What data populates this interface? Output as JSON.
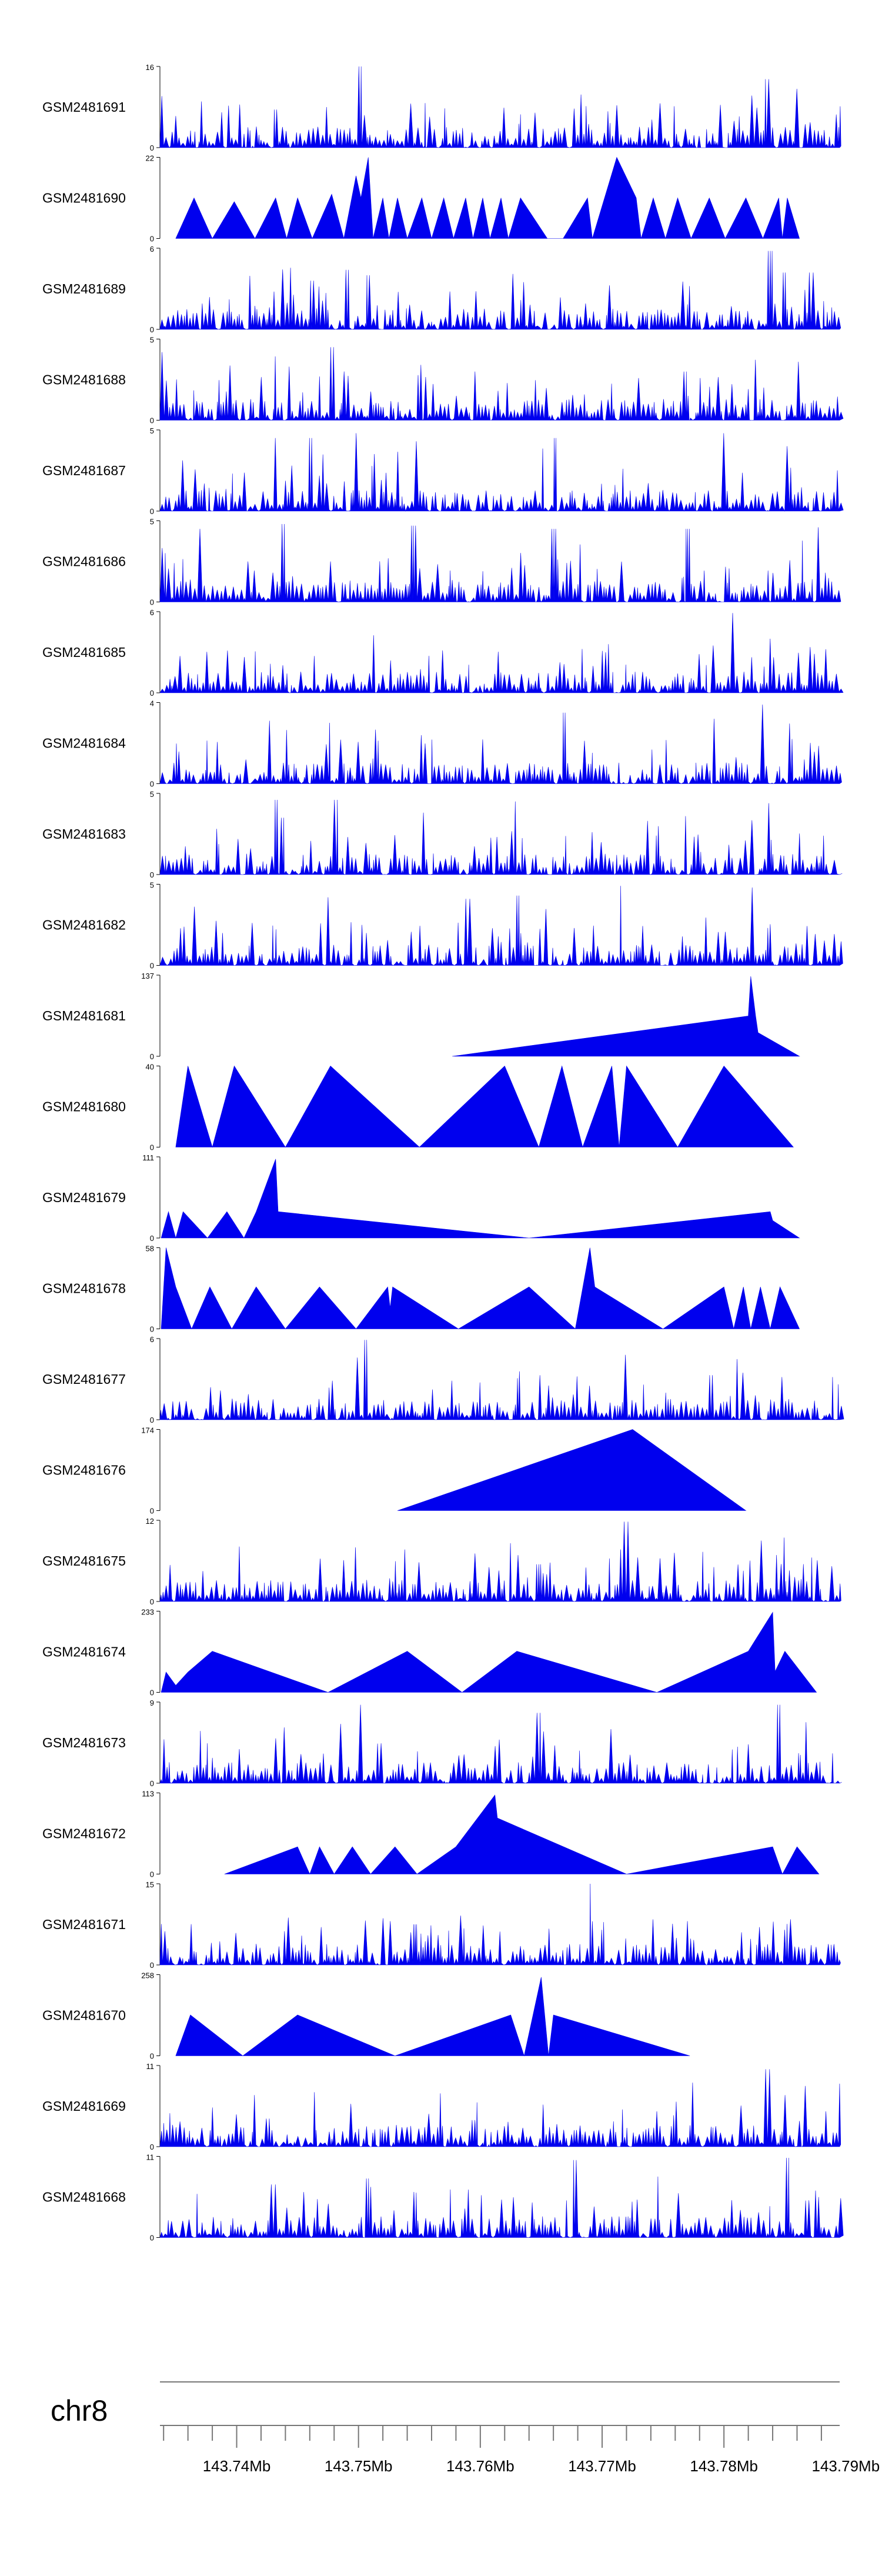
{
  "chart_data": {
    "type": "area",
    "title": "",
    "xlabel": "",
    "ylabel": "",
    "chromosome": "chr8",
    "xlim": [
      143.7337,
      143.7895
    ],
    "xticks": [
      143.74,
      143.75,
      143.76,
      143.77,
      143.78,
      143.79
    ],
    "xtick_labels": [
      "143.74Mb",
      "143.75Mb",
      "143.76Mb",
      "143.77Mb",
      "143.78Mb",
      "143.79Mb"
    ],
    "fill_color": "#0000ee",
    "grid": false,
    "legend": "none",
    "tracks": [
      {
        "name": "GSM2481691",
        "ymax": 16,
        "pattern": "dense",
        "peaks": [
          [
            143.7502,
            16
          ],
          [
            143.7432,
            7.5
          ],
          [
            143.7836,
            13.5
          ],
          [
            143.7871,
            5
          ]
        ]
      },
      {
        "name": "GSM2481690",
        "ymax": 22,
        "pattern": "triangles",
        "starts": 143.735,
        "points": [
          [
            143.735,
            0
          ],
          [
            143.7365,
            11
          ],
          [
            143.738,
            0
          ],
          [
            143.7398,
            10
          ],
          [
            143.7415,
            0
          ],
          [
            143.7432,
            11
          ],
          [
            143.7441,
            0
          ],
          [
            143.745,
            11
          ],
          [
            143.7462,
            0
          ],
          [
            143.7478,
            12
          ],
          [
            143.7488,
            0
          ],
          [
            143.7498,
            17
          ],
          [
            143.7502,
            11
          ],
          [
            143.7508,
            22
          ],
          [
            143.7512,
            0
          ],
          [
            143.752,
            11
          ],
          [
            143.7525,
            0
          ],
          [
            143.7532,
            11
          ],
          [
            143.754,
            0
          ],
          [
            143.7552,
            11
          ],
          [
            143.756,
            0
          ],
          [
            143.757,
            11
          ],
          [
            143.7578,
            0
          ],
          [
            143.7588,
            11
          ],
          [
            143.7594,
            0
          ],
          [
            143.7602,
            11
          ],
          [
            143.7608,
            0
          ],
          [
            143.7617,
            11
          ],
          [
            143.7623,
            0
          ],
          [
            143.7633,
            11
          ],
          [
            143.7655,
            0
          ],
          [
            143.7668,
            0
          ],
          [
            143.7688,
            11
          ],
          [
            143.7692,
            0
          ],
          [
            143.7712,
            22
          ],
          [
            143.7728,
            11
          ],
          [
            143.7732,
            0
          ],
          [
            143.7742,
            11
          ],
          [
            143.7752,
            0
          ],
          [
            143.7762,
            11
          ],
          [
            143.7773,
            0
          ],
          [
            143.7788,
            11
          ],
          [
            143.7801,
            0
          ],
          [
            143.7818,
            11
          ],
          [
            143.7832,
            0
          ],
          [
            143.7845,
            11
          ],
          [
            143.7848,
            0
          ],
          [
            143.7852,
            11
          ],
          [
            143.7862,
            0
          ]
        ]
      },
      {
        "name": "GSM2481689",
        "ymax": 6,
        "pattern": "dense",
        "peaks": [
          [
            143.7462,
            3.6
          ],
          [
            143.749,
            4.4
          ],
          [
            143.7508,
            4.0
          ],
          [
            143.7628,
            4.1
          ],
          [
            143.7838,
            5.8
          ],
          [
            143.785,
            4.2
          ],
          [
            143.7872,
            4.2
          ]
        ]
      },
      {
        "name": "GSM2481688",
        "ymax": 5,
        "pattern": "dense",
        "peaks": [
          [
            143.7338,
            4.2
          ],
          [
            143.7478,
            4.5
          ],
          [
            143.7488,
            3.0
          ],
          [
            143.7596,
            3.0
          ],
          [
            143.7768,
            3.0
          ],
          [
            143.7862,
            3.6
          ]
        ]
      },
      {
        "name": "GSM2481687",
        "ymax": 5,
        "pattern": "dense",
        "peaks": [
          [
            143.7432,
            4.5
          ],
          [
            143.7461,
            4.5
          ],
          [
            143.7498,
            4.8
          ],
          [
            143.7548,
            4.3
          ],
          [
            143.7661,
            4.5
          ],
          [
            143.78,
            4.8
          ],
          [
            143.785,
            4.0
          ]
        ]
      },
      {
        "name": "GSM2481686",
        "ymax": 5,
        "pattern": "dense",
        "peaks": [
          [
            143.7368,
            4.5
          ],
          [
            143.7438,
            4.8
          ],
          [
            143.7545,
            4.7
          ],
          [
            143.766,
            4.5
          ],
          [
            143.777,
            4.5
          ],
          [
            143.7878,
            4.6
          ]
        ]
      },
      {
        "name": "GSM2481685",
        "ymax": 6,
        "pattern": "dense",
        "peaks": [
          [
            143.7808,
            5.9
          ],
          [
            143.7792,
            3.5
          ],
          [
            143.7838,
            4.0
          ],
          [
            143.7702,
            3.0
          ]
        ]
      },
      {
        "name": "GSM2481684",
        "ymax": 4,
        "pattern": "dense",
        "peaks": [
          [
            143.7428,
            3.1
          ],
          [
            143.7476,
            3.0
          ],
          [
            143.7668,
            3.5
          ],
          [
            143.7792,
            3.2
          ],
          [
            143.7832,
            3.9
          ]
        ]
      },
      {
        "name": "GSM2481683",
        "ymax": 5,
        "pattern": "dense",
        "peaks": [
          [
            143.7432,
            4.6
          ],
          [
            143.7438,
            3.5
          ],
          [
            143.7481,
            4.6
          ],
          [
            143.7628,
            4.5
          ],
          [
            143.7768,
            3.6
          ],
          [
            143.7836,
            4.4
          ]
        ]
      },
      {
        "name": "GSM2481682",
        "ymax": 5,
        "pattern": "dense",
        "peaks": [
          [
            143.7475,
            4.2
          ],
          [
            143.759,
            4.1
          ],
          [
            143.763,
            4.3
          ],
          [
            143.7715,
            4.9
          ],
          [
            143.7822,
            4.8
          ]
        ]
      },
      {
        "name": "GSM2481681",
        "ymax": 137,
        "pattern": "triangles",
        "points": [
          [
            143.7577,
            0
          ],
          [
            143.782,
            68
          ],
          [
            143.7822,
            135
          ],
          [
            143.7826,
            68
          ],
          [
            143.7828,
            40
          ],
          [
            143.7862,
            0
          ]
        ]
      },
      {
        "name": "GSM2481680",
        "ymax": 40,
        "pattern": "triangles",
        "points": [
          [
            143.735,
            0
          ],
          [
            143.736,
            40
          ],
          [
            143.738,
            0
          ],
          [
            143.7398,
            40
          ],
          [
            143.744,
            0
          ],
          [
            143.7477,
            40
          ],
          [
            143.755,
            0
          ],
          [
            143.762,
            40
          ],
          [
            143.7648,
            0
          ],
          [
            143.7667,
            40
          ],
          [
            143.7684,
            0
          ],
          [
            143.7708,
            40
          ],
          [
            143.7714,
            0
          ],
          [
            143.772,
            40
          ],
          [
            143.7762,
            0
          ],
          [
            143.78,
            40
          ],
          [
            143.7857,
            0
          ]
        ]
      },
      {
        "name": "GSM2481679",
        "ymax": 111,
        "pattern": "triangles",
        "points": [
          [
            143.7338,
            0
          ],
          [
            143.7344,
            36
          ],
          [
            143.735,
            0
          ],
          [
            143.7356,
            36
          ],
          [
            143.7376,
            0
          ],
          [
            143.7392,
            36
          ],
          [
            143.7406,
            0
          ],
          [
            143.7416,
            36
          ],
          [
            143.7432,
            108
          ],
          [
            143.7434,
            36
          ],
          [
            143.764,
            0
          ],
          [
            143.7838,
            36
          ],
          [
            143.784,
            24
          ],
          [
            143.7862,
            0
          ]
        ]
      },
      {
        "name": "GSM2481678",
        "ymax": 58,
        "pattern": "triangles",
        "points": [
          [
            143.7338,
            0
          ],
          [
            143.7342,
            58
          ],
          [
            143.735,
            30
          ],
          [
            143.7363,
            0
          ],
          [
            143.7378,
            30
          ],
          [
            143.7396,
            0
          ],
          [
            143.7416,
            30
          ],
          [
            143.744,
            0
          ],
          [
            143.7468,
            30
          ],
          [
            143.7498,
            0
          ],
          [
            143.7524,
            30
          ],
          [
            143.7526,
            15
          ],
          [
            143.7528,
            30
          ],
          [
            143.7582,
            0
          ],
          [
            143.764,
            30
          ],
          [
            143.7678,
            0
          ],
          [
            143.769,
            58
          ],
          [
            143.7694,
            30
          ],
          [
            143.775,
            0
          ],
          [
            143.78,
            30
          ],
          [
            143.7808,
            0
          ],
          [
            143.7816,
            30
          ],
          [
            143.7822,
            0
          ],
          [
            143.783,
            30
          ],
          [
            143.7838,
            0
          ],
          [
            143.7846,
            30
          ],
          [
            143.7862,
            0
          ]
        ]
      },
      {
        "name": "GSM2481677",
        "ymax": 6,
        "pattern": "dense",
        "peaks": [
          [
            143.7505,
            5.9
          ],
          [
            143.7498,
            4.6
          ],
          [
            143.768,
            3.2
          ],
          [
            143.772,
            4.8
          ],
          [
            143.779,
            3.3
          ]
        ]
      },
      {
        "name": "GSM2481676",
        "ymax": 174,
        "pattern": "triangles",
        "points": [
          [
            143.7532,
            0
          ],
          [
            143.7725,
            174
          ],
          [
            143.7818,
            0
          ]
        ]
      },
      {
        "name": "GSM2481675",
        "ymax": 12,
        "pattern": "dense",
        "peaks": [
          [
            143.772,
            11.8
          ],
          [
            143.7498,
            8.0
          ],
          [
            143.7832,
            9.0
          ],
          [
            143.7648,
            5.5
          ],
          [
            143.7372,
            4.5
          ]
        ]
      },
      {
        "name": "GSM2481674",
        "ymax": 233,
        "pattern": "triangles",
        "points": [
          [
            143.7338,
            0
          ],
          [
            143.7342,
            58
          ],
          [
            143.735,
            20
          ],
          [
            143.736,
            58
          ],
          [
            143.738,
            118
          ],
          [
            143.7475,
            0
          ],
          [
            143.754,
            118
          ],
          [
            143.7585,
            0
          ],
          [
            143.763,
            118
          ],
          [
            143.7745,
            0
          ],
          [
            143.782,
            118
          ],
          [
            143.784,
            230
          ],
          [
            143.7842,
            60
          ],
          [
            143.785,
            118
          ],
          [
            143.7876,
            0
          ]
        ]
      },
      {
        "name": "GSM2481673",
        "ymax": 9,
        "pattern": "dense",
        "peaks": [
          [
            143.7503,
            8.7
          ],
          [
            143.7648,
            7.8
          ],
          [
            143.7708,
            6.0
          ],
          [
            143.7845,
            8.7
          ],
          [
            143.737,
            5.8
          ]
        ]
      },
      {
        "name": "GSM2481672",
        "ymax": 113,
        "pattern": "triangles",
        "points": [
          [
            143.739,
            0
          ],
          [
            143.745,
            38
          ],
          [
            143.746,
            0
          ],
          [
            143.7468,
            38
          ],
          [
            143.748,
            0
          ],
          [
            143.7495,
            38
          ],
          [
            143.751,
            0
          ],
          [
            143.753,
            38
          ],
          [
            143.7548,
            0
          ],
          [
            143.758,
            38
          ],
          [
            143.7612,
            110
          ],
          [
            143.7614,
            78
          ],
          [
            143.772,
            0
          ],
          [
            143.784,
            38
          ],
          [
            143.7848,
            0
          ],
          [
            143.786,
            38
          ],
          [
            143.7878,
            0
          ]
        ]
      },
      {
        "name": "GSM2481671",
        "ymax": 15,
        "pattern": "dense",
        "peaks": [
          [
            143.769,
            15.0
          ],
          [
            143.77,
            6.5
          ],
          [
            143.776,
            5.0
          ],
          [
            143.784,
            8.0
          ],
          [
            143.747,
            7.0
          ],
          [
            143.7546,
            7.5
          ]
        ]
      },
      {
        "name": "GSM2481670",
        "ymax": 258,
        "pattern": "triangles",
        "points": [
          [
            143.735,
            0
          ],
          [
            143.7362,
            130
          ],
          [
            143.7405,
            0
          ],
          [
            143.745,
            130
          ],
          [
            143.753,
            0
          ],
          [
            143.7625,
            130
          ],
          [
            143.7636,
            0
          ],
          [
            143.765,
            250
          ],
          [
            143.7656,
            0
          ],
          [
            143.766,
            130
          ],
          [
            143.7772,
            0
          ]
        ]
      },
      {
        "name": "GSM2481669",
        "ymax": 11,
        "pattern": "dense",
        "peaks": [
          [
            143.7836,
            10.5
          ],
          [
            143.7495,
            5.8
          ],
          [
            143.7595,
            3.6
          ],
          [
            143.7425,
            3.8
          ]
        ]
      },
      {
        "name": "GSM2481668",
        "ymax": 11,
        "pattern": "dense",
        "peaks": [
          [
            143.7508,
            8.0
          ],
          [
            143.7678,
            10.5
          ],
          [
            143.7852,
            10.8
          ],
          [
            143.743,
            7.2
          ],
          [
            143.759,
            6.5
          ]
        ]
      }
    ]
  }
}
